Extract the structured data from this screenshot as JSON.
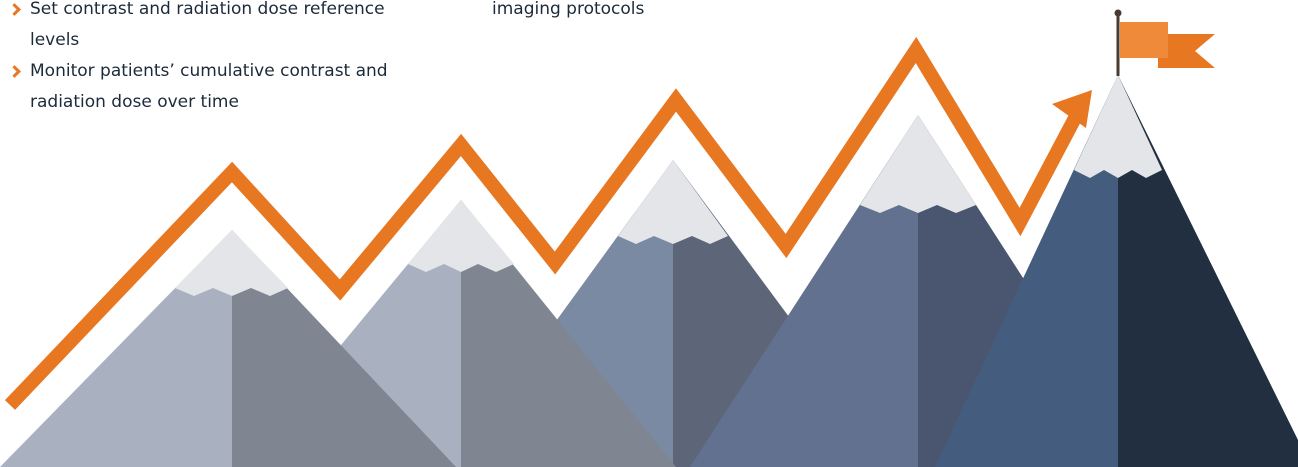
{
  "left_list": {
    "items": [
      "Set contrast and radiation dose reference levels",
      "Monitor patients’ cumulative contrast and radiation dose over time"
    ]
  },
  "right_list": {
    "items": [
      "imaging protocols"
    ]
  }
}
